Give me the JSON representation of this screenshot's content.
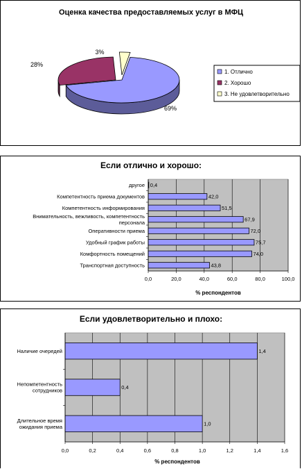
{
  "chart_data": [
    {
      "type": "pie",
      "title": "Оценка качества предоставляемых услуг в МФЦ",
      "categories": [
        "1. Отлично",
        "2. Хорошо",
        "3. Не удовлетворительно"
      ],
      "values": [
        69,
        28,
        3
      ],
      "data_labels": [
        "69%",
        "28%",
        "3%"
      ],
      "colors": [
        "#9999ff",
        "#993366",
        "#ffffcc"
      ],
      "legend_position": "right"
    },
    {
      "type": "bar",
      "orientation": "horizontal",
      "title": "Если отлично и хорошо:",
      "xlabel": "% респондентов",
      "categories": [
        "другое",
        "Компетентность приема документов",
        "Компетентность информирования",
        "Внимательность, вежливость, компетентность персонала",
        "Оперативности приема",
        "Удобный график работы",
        "Комфортность помещений",
        "Транспортная доступность"
      ],
      "category_lines": [
        [
          "другое"
        ],
        [
          "Компетентность приема документов"
        ],
        [
          "Компетентность информирования"
        ],
        [
          "Внимательность, вежливость, компетентность",
          "персонала"
        ],
        [
          "Оперативности приема"
        ],
        [
          "Удобный график работы"
        ],
        [
          "Комфортность помещений"
        ],
        [
          "Транспортная доступность"
        ]
      ],
      "values": [
        0.4,
        42.0,
        51.5,
        67.9,
        72.0,
        75.7,
        74.0,
        43.8
      ],
      "data_labels": [
        "0,4",
        "42,0",
        "51,5",
        "67,9",
        "72,0",
        "75,7",
        "74,0",
        "43,8"
      ],
      "xlim": [
        0,
        100
      ],
      "xticks": [
        "0,0",
        "20,0",
        "40,0",
        "60,0",
        "80,0",
        "100,0"
      ],
      "bar_color": "#9999ff",
      "plot_background": "#c0c0c0",
      "grid": true
    },
    {
      "type": "bar",
      "orientation": "horizontal",
      "title": "Если удовлетворительно и плохо:",
      "xlabel": "% респондентов",
      "categories": [
        "Наличие очередей",
        "Непомпетентность сотрудников",
        "Длительное время ожидания приема"
      ],
      "category_lines": [
        [
          "Наличие очередей"
        ],
        [
          "Непомпетентность",
          "сотрудников"
        ],
        [
          "Длительное время",
          "ожидания приема"
        ]
      ],
      "values": [
        1.4,
        0.4,
        1.0
      ],
      "data_labels": [
        "1,4",
        "0,4",
        "1,0"
      ],
      "xlim": [
        0,
        1.6
      ],
      "xticks": [
        "0,0",
        "0,2",
        "0,4",
        "0,6",
        "0,8",
        "1,0",
        "1,2",
        "1,4",
        "1,6"
      ],
      "bar_color": "#9999ff",
      "plot_background": "#c0c0c0",
      "grid": true
    }
  ]
}
